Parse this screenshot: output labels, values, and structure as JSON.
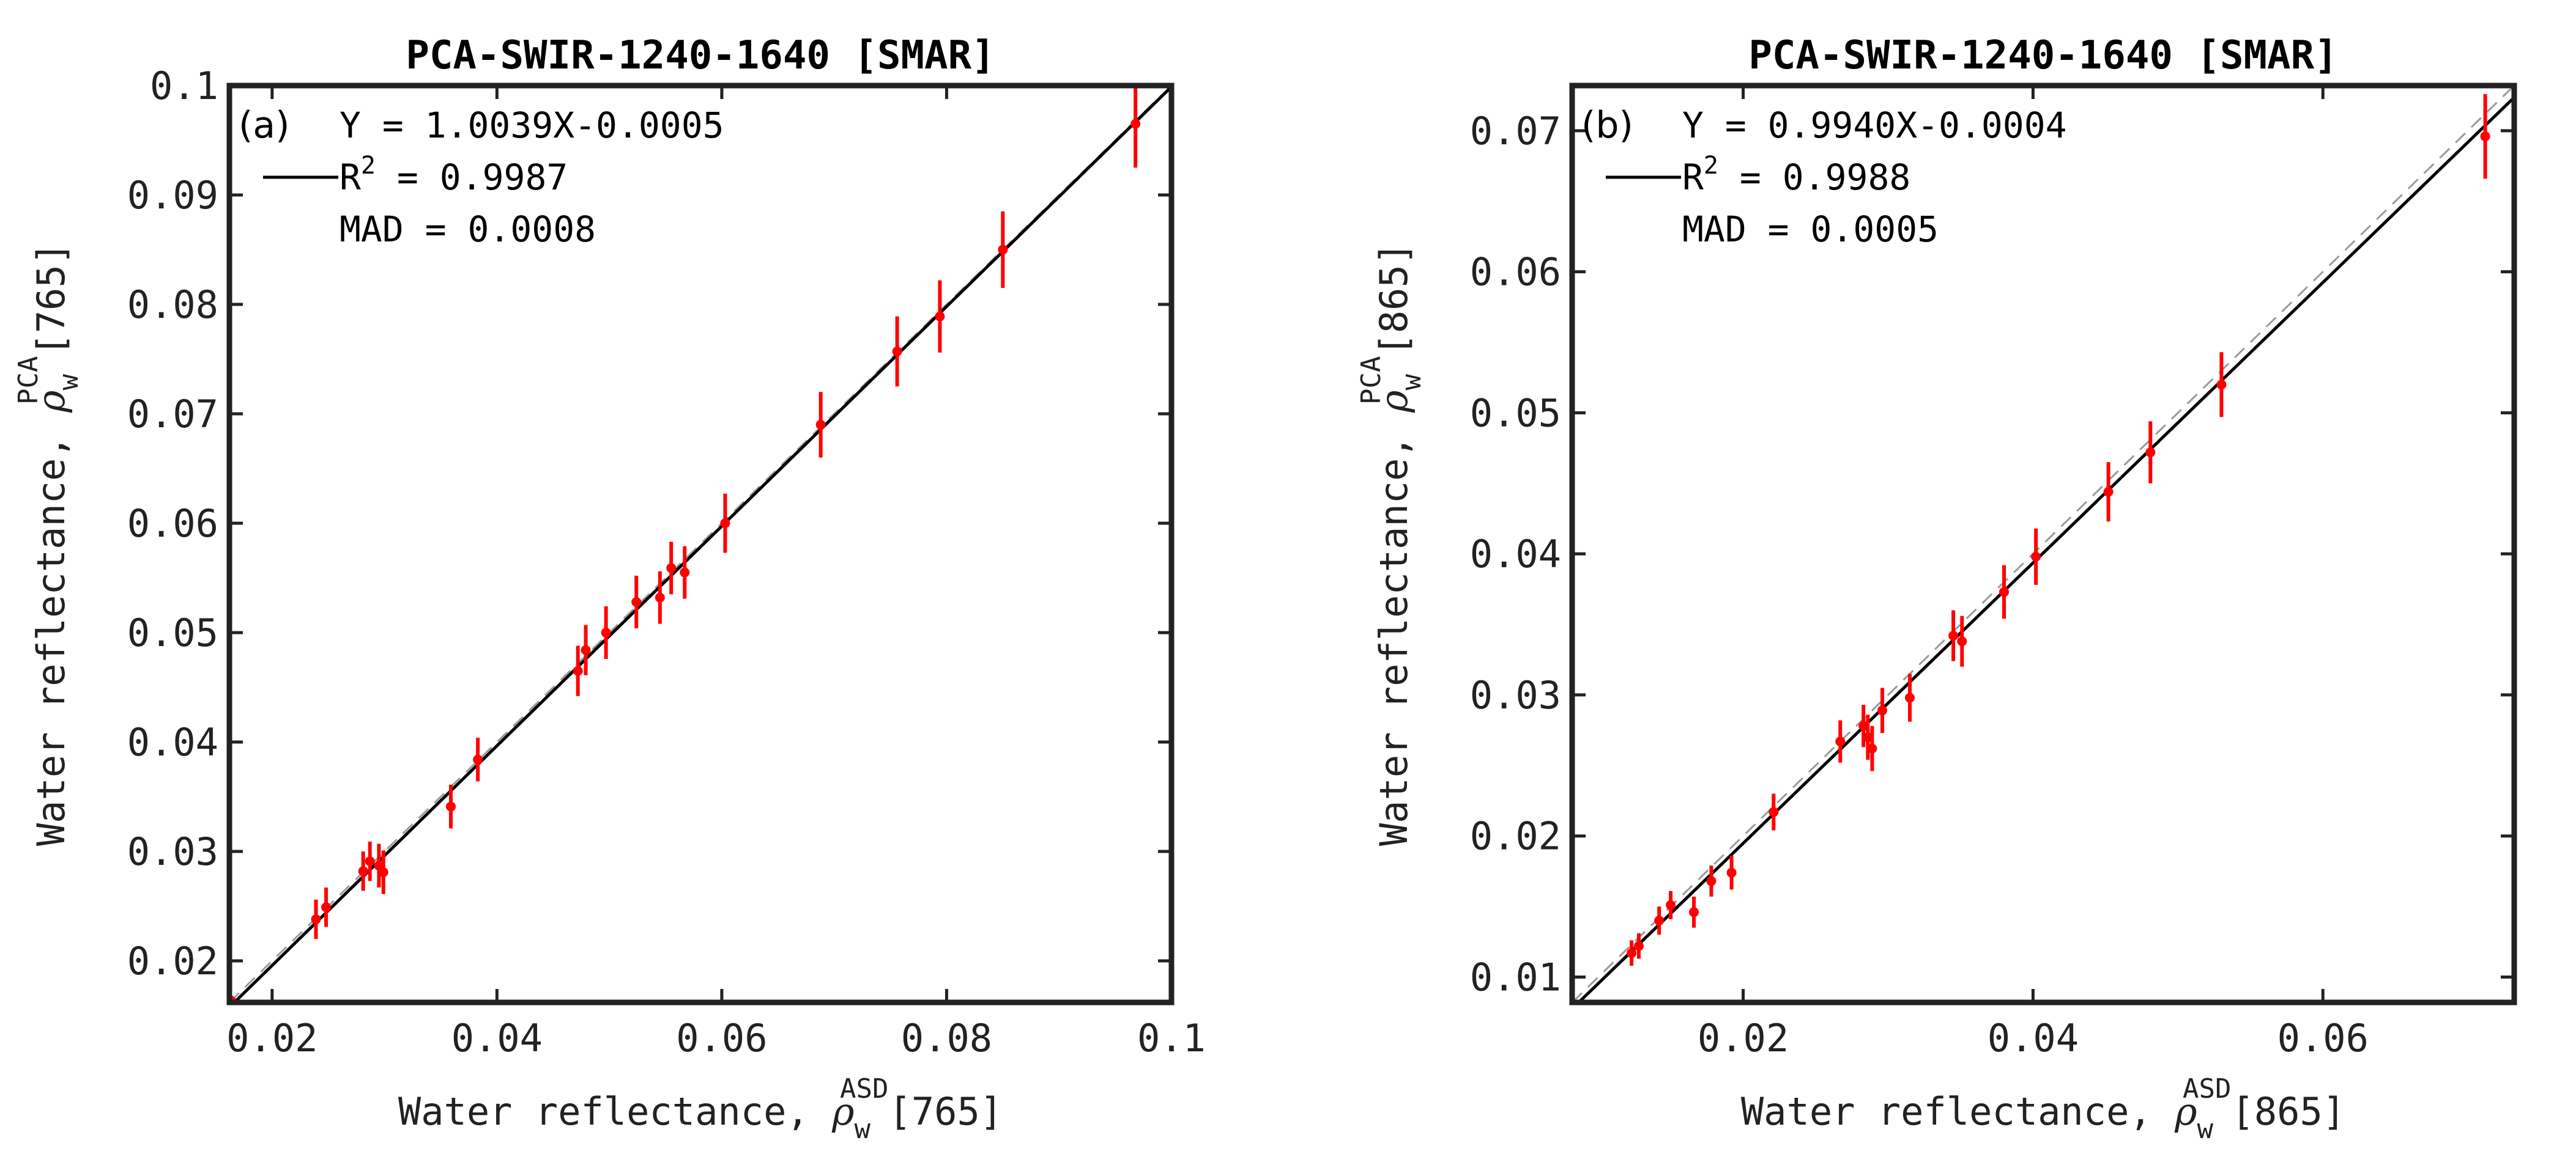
{
  "chart_data": [
    {
      "type": "scatter",
      "panel": "(a)",
      "title": "PCA-SWIR-1240-1640 [SMAR]",
      "xlabel": {
        "text": "Water reflectance, ",
        "symbol": "ρ",
        "sub": "w",
        "sup": "ASD",
        "suffix": "[765]"
      },
      "ylabel": {
        "text": "Water reflectance, ",
        "symbol": "ρ",
        "sub": "w",
        "sup": "PCA",
        "suffix": "[765]"
      },
      "xlim": [
        0.0162,
        0.1
      ],
      "ylim": [
        0.0162,
        0.1
      ],
      "xticks": [
        0.02,
        0.04,
        0.06,
        0.08,
        0.1
      ],
      "xtick_labels": [
        "0.02",
        "0.04",
        "0.06",
        "0.08",
        "0.1"
      ],
      "yticks": [
        0.02,
        0.03,
        0.04,
        0.05,
        0.06,
        0.07,
        0.08,
        0.09,
        0.1
      ],
      "ytick_labels": [
        "0.02",
        "0.03",
        "0.04",
        "0.05",
        "0.06",
        "0.07",
        "0.08",
        "0.09",
        "0.1"
      ],
      "fit": {
        "slope": 1.0039,
        "intercept": -0.0005
      },
      "annotation": {
        "equation": "Y = 1.0039X-0.0005",
        "r2_prefix": "R",
        "r2_sup": "2",
        "r2_value": " = 0.9987",
        "mad": "MAD = 0.0008"
      },
      "points": [
        {
          "x": 0.0164,
          "y": 0.0163,
          "err": 0.0005
        },
        {
          "x": 0.0239,
          "y": 0.0238,
          "err": 0.0018
        },
        {
          "x": 0.0248,
          "y": 0.0249,
          "err": 0.0018
        },
        {
          "x": 0.0281,
          "y": 0.0282,
          "err": 0.0018
        },
        {
          "x": 0.0287,
          "y": 0.0291,
          "err": 0.0018
        },
        {
          "x": 0.0295,
          "y": 0.0287,
          "err": 0.002
        },
        {
          "x": 0.0299,
          "y": 0.0281,
          "err": 0.002
        },
        {
          "x": 0.0359,
          "y": 0.0341,
          "err": 0.002
        },
        {
          "x": 0.0383,
          "y": 0.0384,
          "err": 0.002
        },
        {
          "x": 0.0472,
          "y": 0.0465,
          "err": 0.0023
        },
        {
          "x": 0.0479,
          "y": 0.0484,
          "err": 0.0023
        },
        {
          "x": 0.0497,
          "y": 0.05,
          "err": 0.0024
        },
        {
          "x": 0.0524,
          "y": 0.0528,
          "err": 0.0024
        },
        {
          "x": 0.0545,
          "y": 0.0532,
          "err": 0.0024
        },
        {
          "x": 0.0555,
          "y": 0.0559,
          "err": 0.0024
        },
        {
          "x": 0.0567,
          "y": 0.0555,
          "err": 0.0024
        },
        {
          "x": 0.0603,
          "y": 0.06,
          "err": 0.0027
        },
        {
          "x": 0.0688,
          "y": 0.069,
          "err": 0.003
        },
        {
          "x": 0.0756,
          "y": 0.0757,
          "err": 0.0032
        },
        {
          "x": 0.0794,
          "y": 0.0789,
          "err": 0.0033
        },
        {
          "x": 0.085,
          "y": 0.085,
          "err": 0.0035
        },
        {
          "x": 0.0968,
          "y": 0.0965,
          "err": 0.004
        }
      ]
    },
    {
      "type": "scatter",
      "panel": "(b)",
      "title": "PCA-SWIR-1240-1640 [SMAR]",
      "xlabel": {
        "text": "Water reflectance, ",
        "symbol": "ρ",
        "sub": "w",
        "sup": "ASD",
        "suffix": "[865]"
      },
      "ylabel": {
        "text": "Water reflectance, ",
        "symbol": "ρ",
        "sub": "w",
        "sup": "PCA",
        "suffix": "[865]"
      },
      "xlim": [
        0.0082,
        0.0732
      ],
      "ylim": [
        0.0082,
        0.0732
      ],
      "xticks": [
        0.02,
        0.04,
        0.06
      ],
      "xtick_labels": [
        "0.02",
        "0.04",
        "0.06"
      ],
      "yticks": [
        0.01,
        0.02,
        0.03,
        0.04,
        0.05,
        0.06,
        0.07
      ],
      "ytick_labels": [
        "0.01",
        "0.02",
        "0.03",
        "0.04",
        "0.05",
        "0.06",
        "0.07"
      ],
      "fit": {
        "slope": 0.994,
        "intercept": -0.0004
      },
      "annotation": {
        "equation": "Y = 0.9940X-0.0004",
        "r2_prefix": "R",
        "r2_sup": "2",
        "r2_value": " = 0.9988",
        "mad": "MAD = 0.0005"
      },
      "points": [
        {
          "x": 0.0123,
          "y": 0.0117,
          "err": 0.0009
        },
        {
          "x": 0.0128,
          "y": 0.0122,
          "err": 0.0009
        },
        {
          "x": 0.0142,
          "y": 0.014,
          "err": 0.001
        },
        {
          "x": 0.015,
          "y": 0.0151,
          "err": 0.001
        },
        {
          "x": 0.0166,
          "y": 0.0146,
          "err": 0.0011
        },
        {
          "x": 0.0178,
          "y": 0.0168,
          "err": 0.0011
        },
        {
          "x": 0.0192,
          "y": 0.0174,
          "err": 0.0012
        },
        {
          "x": 0.0221,
          "y": 0.0217,
          "err": 0.0013
        },
        {
          "x": 0.0267,
          "y": 0.0267,
          "err": 0.0015
        },
        {
          "x": 0.0283,
          "y": 0.0278,
          "err": 0.0015
        },
        {
          "x": 0.0286,
          "y": 0.027,
          "err": 0.0016
        },
        {
          "x": 0.0289,
          "y": 0.0262,
          "err": 0.0016
        },
        {
          "x": 0.0296,
          "y": 0.0289,
          "err": 0.0016
        },
        {
          "x": 0.0315,
          "y": 0.0298,
          "err": 0.0017
        },
        {
          "x": 0.0345,
          "y": 0.0342,
          "err": 0.0018
        },
        {
          "x": 0.0351,
          "y": 0.0338,
          "err": 0.0018
        },
        {
          "x": 0.038,
          "y": 0.0373,
          "err": 0.0019
        },
        {
          "x": 0.0402,
          "y": 0.0398,
          "err": 0.002
        },
        {
          "x": 0.0452,
          "y": 0.0444,
          "err": 0.0021
        },
        {
          "x": 0.0481,
          "y": 0.0472,
          "err": 0.0022
        },
        {
          "x": 0.053,
          "y": 0.052,
          "err": 0.0023
        },
        {
          "x": 0.0712,
          "y": 0.0696,
          "err": 0.003
        }
      ]
    }
  ]
}
